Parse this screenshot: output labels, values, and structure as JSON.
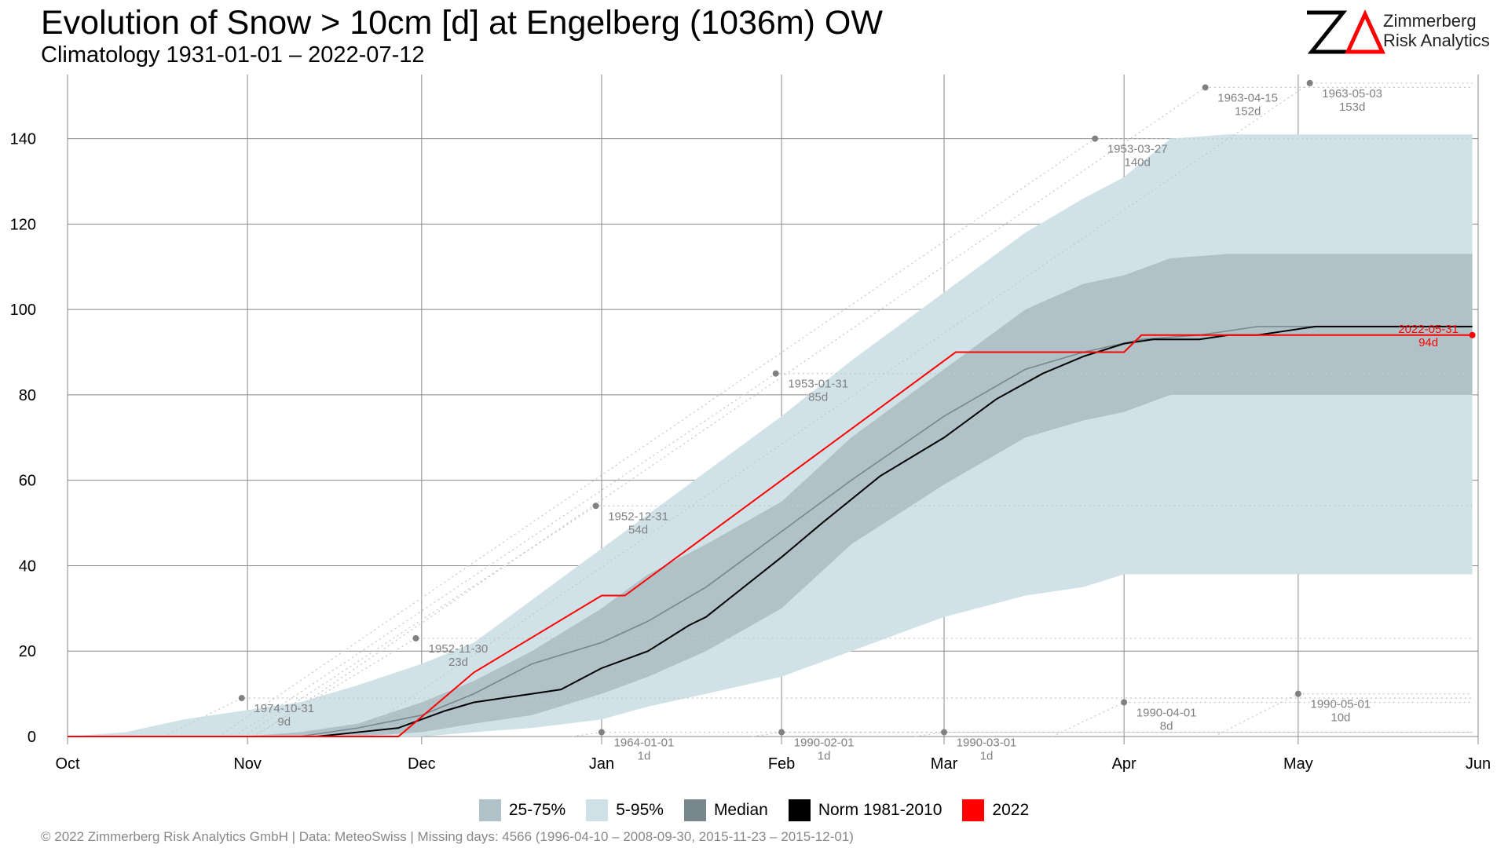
{
  "header": {
    "title": "Evolution of Snow > 10cm [d] at Engelberg (1036m) OW",
    "subtitle": "Climatology 1931-01-01 – 2022-07-12"
  },
  "logo": {
    "line1": "Zimmerberg",
    "line2": "Risk Analytics",
    "mark": "ZΔ"
  },
  "colors": {
    "band_25_75": "#b0c2c8",
    "band_5_95": "#d0e2e8",
    "median": "#77878c",
    "norm": "#000000",
    "current": "#ff0000",
    "annotation": "#808080",
    "grid": "#888888"
  },
  "legend": {
    "items": [
      {
        "label": "25-75%",
        "color": "#b0c2c8"
      },
      {
        "label": "5-95%",
        "color": "#d0e2e8"
      },
      {
        "label": "Median",
        "color": "#77878c"
      },
      {
        "label": "Norm 1981-2010",
        "color": "#000000"
      },
      {
        "label": "2022",
        "color": "#ff0000"
      }
    ]
  },
  "footer": "©  2022 Zimmerberg Risk Analytics GmbH | Data: MeteoSwiss | Missing days: 4566 (1996-04-10 – 2008-09-30, 2015-11-23 – 2015-12-01)",
  "chart_data": {
    "type": "area",
    "x_unit": "day since Oct 1",
    "xlim": [
      0,
      243
    ],
    "ylim": [
      0,
      155
    ],
    "y_ticks": [
      0,
      20,
      40,
      60,
      80,
      100,
      120,
      140
    ],
    "x_ticks": [
      {
        "label": "Oct",
        "x": 0
      },
      {
        "label": "Nov",
        "x": 31
      },
      {
        "label": "Dec",
        "x": 61
      },
      {
        "label": "Jan",
        "x": 92
      },
      {
        "label": "Feb",
        "x": 123
      },
      {
        "label": "Mar",
        "x": 151
      },
      {
        "label": "Apr",
        "x": 182
      },
      {
        "label": "May",
        "x": 212
      },
      {
        "label": "Jun",
        "x": 243
      }
    ],
    "grid": true,
    "band_5_95": {
      "x": [
        0,
        10,
        20,
        30,
        40,
        50,
        61,
        70,
        80,
        92,
        100,
        110,
        123,
        135,
        151,
        165,
        175,
        182,
        190,
        200,
        212,
        225,
        242
      ],
      "upper": [
        0,
        1,
        4,
        6,
        8,
        12,
        17,
        22,
        32,
        44,
        52,
        62,
        75,
        88,
        104,
        118,
        126,
        131,
        140,
        141,
        141,
        141,
        141
      ],
      "lower": [
        0,
        0,
        0,
        0,
        0,
        0,
        0,
        1,
        2,
        4,
        7,
        10,
        14,
        20,
        28,
        33,
        35,
        38,
        38,
        38,
        38,
        38,
        38
      ]
    },
    "band_25_75": {
      "x": [
        0,
        30,
        40,
        50,
        61,
        70,
        80,
        92,
        100,
        110,
        123,
        135,
        151,
        165,
        175,
        182,
        190,
        200,
        212,
        225,
        242
      ],
      "upper": [
        0,
        0,
        1,
        3,
        8,
        13,
        20,
        30,
        38,
        45,
        55,
        70,
        86,
        100,
        106,
        108,
        112,
        113,
        113,
        113,
        113
      ],
      "lower": [
        0,
        0,
        0,
        0,
        1,
        3,
        5,
        10,
        14,
        20,
        30,
        45,
        59,
        70,
        74,
        76,
        80,
        80,
        80,
        80,
        80
      ]
    },
    "series": [
      {
        "name": "Median",
        "x": [
          0,
          40,
          50,
          61,
          70,
          80,
          92,
          100,
          110,
          123,
          135,
          151,
          165,
          175,
          185,
          195,
          205,
          215,
          242
        ],
        "y": [
          0,
          0,
          2,
          5,
          10,
          17,
          22,
          27,
          35,
          48,
          60,
          75,
          86,
          90,
          93,
          94,
          96,
          96,
          96
        ]
      },
      {
        "name": "Norm 1981-2010",
        "x": [
          0,
          43,
          50,
          57,
          61,
          65,
          70,
          75,
          80,
          85,
          92,
          100,
          107,
          110,
          123,
          130,
          140,
          151,
          160,
          168,
          175,
          182,
          187,
          195,
          200,
          205,
          210,
          215,
          225,
          242
        ],
        "y": [
          0,
          0,
          1,
          2,
          4,
          6,
          8,
          9,
          10,
          11,
          16,
          20,
          26,
          28,
          42,
          50,
          61,
          70,
          79,
          85,
          89,
          92,
          93,
          93,
          94,
          94,
          95,
          96,
          96,
          96
        ]
      },
      {
        "name": "2022",
        "x": [
          0,
          57,
          70,
          92,
          96,
          123,
          153,
          182,
          185,
          242
        ],
        "y": [
          0,
          0,
          15,
          33,
          33,
          60,
          90,
          90,
          94,
          94
        ]
      }
    ],
    "annotations": [
      {
        "date": "1974-10-31",
        "value": "9d",
        "x": 30,
        "y": 9
      },
      {
        "date": "1952-11-30",
        "value": "23d",
        "x": 60,
        "y": 23
      },
      {
        "date": "1952-12-31",
        "value": "54d",
        "x": 91,
        "y": 54
      },
      {
        "date": "1953-01-31",
        "value": "85d",
        "x": 122,
        "y": 85
      },
      {
        "date": "1953-03-27",
        "value": "140d",
        "x": 177,
        "y": 140
      },
      {
        "date": "1963-04-15",
        "value": "152d",
        "x": 196,
        "y": 152
      },
      {
        "date": "1963-05-03",
        "value": "153d",
        "x": 214,
        "y": 153
      },
      {
        "date": "1964-01-01",
        "value": "1d",
        "x": 92,
        "y": 1
      },
      {
        "date": "1990-02-01",
        "value": "1d",
        "x": 123,
        "y": 1
      },
      {
        "date": "1990-03-01",
        "value": "1d",
        "x": 151,
        "y": 1
      },
      {
        "date": "1990-04-01",
        "value": "8d",
        "x": 182,
        "y": 8
      },
      {
        "date": "1990-05-01",
        "value": "10d",
        "x": 212,
        "y": 10
      },
      {
        "date": "2022-05-31",
        "value": "94d",
        "x": 242,
        "y": 94,
        "current": true
      }
    ]
  }
}
